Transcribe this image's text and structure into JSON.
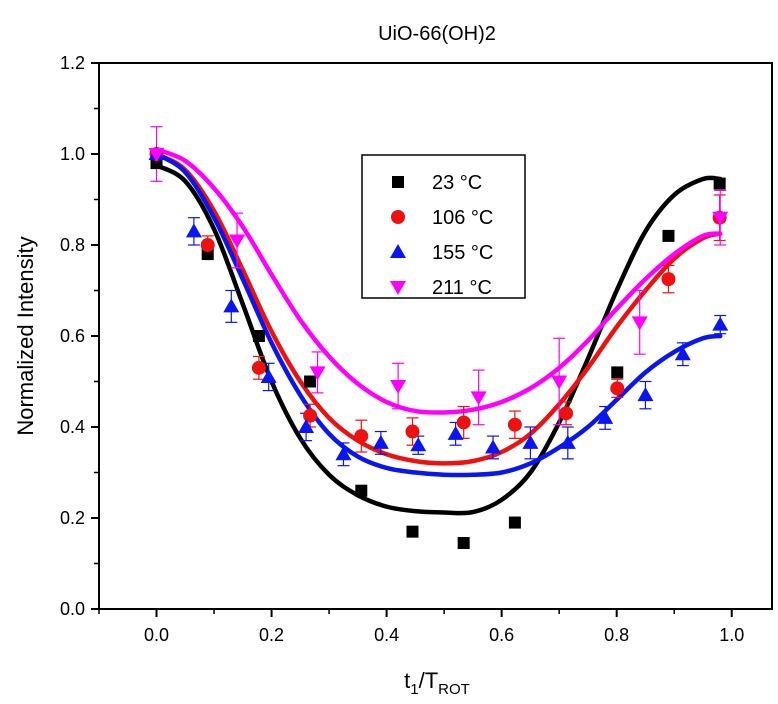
{
  "chart_data": {
    "type": "scatter",
    "title": "UiO-66(OH)2",
    "xlabel": {
      "main": "t",
      "sub1": "1",
      "slash": "/T",
      "sub2": "ROT"
    },
    "ylabel": "Normalized Intensity",
    "xlim": [
      -0.1,
      1.07
    ],
    "ylim": [
      0.0,
      1.2
    ],
    "x_ticks": [
      "0.0",
      "0.2",
      "0.4",
      "0.6",
      "0.8",
      "1.0"
    ],
    "x_tick_values": [
      0.0,
      0.2,
      0.4,
      0.6,
      0.8,
      1.0
    ],
    "y_ticks": [
      "0.0",
      "0.2",
      "0.4",
      "0.6",
      "0.8",
      "1.0",
      "1.2"
    ],
    "y_tick_values": [
      0.0,
      0.2,
      0.4,
      0.6,
      0.8,
      1.0,
      1.2
    ],
    "grid": false,
    "legend_position": "upper-center",
    "series": [
      {
        "name": "23 °C",
        "marker": "square",
        "color": "#000000",
        "x": [
          0.0,
          0.089,
          0.178,
          0.267,
          0.356,
          0.445,
          0.534,
          0.623,
          0.801,
          0.89,
          0.979
        ],
        "y": [
          0.98,
          0.78,
          0.6,
          0.5,
          0.26,
          0.17,
          0.145,
          0.19,
          0.52,
          0.82,
          0.935
        ],
        "err": [
          0.0,
          0.0,
          0.0,
          0.0,
          0.0,
          0.0,
          0.0,
          0.0,
          0.0,
          0.0,
          0.0
        ],
        "fit": {
          "x": [
            0.0,
            0.05,
            0.1,
            0.15,
            0.2,
            0.25,
            0.3,
            0.35,
            0.4,
            0.45,
            0.5,
            0.55,
            0.6,
            0.65,
            0.7,
            0.75,
            0.8,
            0.85,
            0.9,
            0.95,
            0.98
          ],
          "y": [
            0.975,
            0.94,
            0.835,
            0.67,
            0.5,
            0.375,
            0.295,
            0.25,
            0.225,
            0.215,
            0.212,
            0.213,
            0.24,
            0.3,
            0.41,
            0.55,
            0.7,
            0.83,
            0.91,
            0.945,
            0.945
          ]
        }
      },
      {
        "name": "106 °C",
        "marker": "circle",
        "color": "#ee1111",
        "x": [
          0.0,
          0.089,
          0.178,
          0.267,
          0.356,
          0.445,
          0.534,
          0.623,
          0.712,
          0.801,
          0.89,
          0.979
        ],
        "y": [
          1.0,
          0.8,
          0.53,
          0.425,
          0.38,
          0.39,
          0.41,
          0.405,
          0.43,
          0.485,
          0.725,
          0.86
        ],
        "err": [
          0.0,
          0.02,
          0.025,
          0.025,
          0.035,
          0.03,
          0.035,
          0.03,
          0.025,
          0.02,
          0.03,
          0.05
        ],
        "fit": {
          "x": [
            0.0,
            0.05,
            0.1,
            0.15,
            0.2,
            0.25,
            0.3,
            0.35,
            0.4,
            0.45,
            0.5,
            0.55,
            0.6,
            0.65,
            0.7,
            0.75,
            0.8,
            0.85,
            0.9,
            0.95,
            0.98
          ],
          "y": [
            1.0,
            0.965,
            0.875,
            0.745,
            0.61,
            0.5,
            0.42,
            0.37,
            0.34,
            0.325,
            0.32,
            0.325,
            0.345,
            0.385,
            0.45,
            0.53,
            0.62,
            0.7,
            0.77,
            0.815,
            0.825
          ]
        }
      },
      {
        "name": "155 °C",
        "marker": "triangle-up",
        "color": "#0a16f0",
        "x": [
          0.0,
          0.065,
          0.13,
          0.195,
          0.26,
          0.325,
          0.39,
          0.455,
          0.52,
          0.585,
          0.65,
          0.715,
          0.78,
          0.85,
          0.915,
          0.98
        ],
        "y": [
          1.0,
          0.83,
          0.665,
          0.51,
          0.4,
          0.34,
          0.365,
          0.36,
          0.385,
          0.355,
          0.365,
          0.365,
          0.42,
          0.47,
          0.56,
          0.625
        ],
        "err": [
          0.0,
          0.03,
          0.035,
          0.03,
          0.03,
          0.025,
          0.025,
          0.02,
          0.025,
          0.025,
          0.035,
          0.035,
          0.025,
          0.03,
          0.025,
          0.02
        ],
        "fit": {
          "x": [
            0.0,
            0.05,
            0.1,
            0.15,
            0.2,
            0.25,
            0.3,
            0.35,
            0.4,
            0.45,
            0.5,
            0.55,
            0.6,
            0.65,
            0.7,
            0.75,
            0.8,
            0.85,
            0.9,
            0.95,
            0.98
          ],
          "y": [
            1.0,
            0.96,
            0.86,
            0.725,
            0.585,
            0.47,
            0.385,
            0.335,
            0.31,
            0.3,
            0.295,
            0.295,
            0.3,
            0.32,
            0.355,
            0.4,
            0.46,
            0.52,
            0.565,
            0.595,
            0.6
          ]
        }
      },
      {
        "name": "211 °C",
        "marker": "triangle-down",
        "color": "#ff00ff",
        "x": [
          0.0,
          0.14,
          0.28,
          0.42,
          0.56,
          0.7,
          0.84,
          0.98
        ],
        "y": [
          1.0,
          0.81,
          0.52,
          0.49,
          0.465,
          0.5,
          0.63,
          0.86
        ],
        "err": [
          0.06,
          0.06,
          0.045,
          0.05,
          0.06,
          0.095,
          0.07,
          0.06
        ],
        "fit": {
          "x": [
            0.0,
            0.05,
            0.1,
            0.15,
            0.2,
            0.25,
            0.3,
            0.35,
            0.4,
            0.45,
            0.5,
            0.55,
            0.6,
            0.65,
            0.7,
            0.75,
            0.8,
            0.85,
            0.9,
            0.95,
            0.98
          ],
          "y": [
            1.01,
            0.985,
            0.925,
            0.84,
            0.735,
            0.635,
            0.555,
            0.495,
            0.455,
            0.435,
            0.432,
            0.438,
            0.455,
            0.485,
            0.53,
            0.59,
            0.66,
            0.725,
            0.78,
            0.82,
            0.825
          ]
        }
      }
    ]
  }
}
